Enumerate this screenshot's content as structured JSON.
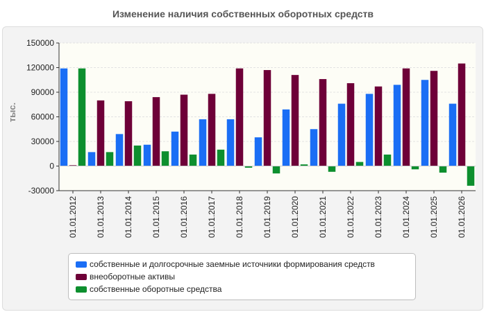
{
  "title": "Изменение наличия собственных оборотных средств",
  "chart_data": {
    "type": "bar",
    "title": "Изменение наличия собственных оборотных средств",
    "ylabel": "тыс.",
    "xlabel": "",
    "ylim": [
      -30000,
      150000
    ],
    "yticks": [
      -30000,
      0,
      30000,
      60000,
      90000,
      120000,
      150000
    ],
    "grid": true,
    "legend_position": "bottom",
    "categories": [
      "01.01.2012",
      "01.01.2013",
      "01.01.2014",
      "01.01.2015",
      "01.01.2016",
      "01.01.2017",
      "01.01.2018",
      "01.01.2019",
      "01.01.2020",
      "01.01.2021",
      "01.01.2022",
      "01.01.2023",
      "01.01.2024",
      "01.01.2025",
      "01.01.2026"
    ],
    "series": [
      {
        "name": "собственные и долгосрочные заемные источники формирования средств",
        "color": "#1a6ef5",
        "values": [
          119000,
          17000,
          39000,
          26000,
          42000,
          57000,
          57000,
          35000,
          69000,
          45000,
          76000,
          88000,
          99000,
          105000,
          76000
        ]
      },
      {
        "name": "внеоборотные активы",
        "color": "#6e0038",
        "values": [
          1000,
          80000,
          79000,
          84000,
          87000,
          88000,
          119000,
          117000,
          111000,
          106000,
          101000,
          97000,
          119000,
          116000,
          125000
        ]
      },
      {
        "name": "собственные оборотные средства",
        "color": "#0d8f2e",
        "values": [
          119000,
          17000,
          25000,
          18000,
          14000,
          20000,
          -2000,
          -9000,
          2000,
          -7000,
          5000,
          14000,
          -4000,
          -8000,
          -24000
        ]
      }
    ]
  }
}
